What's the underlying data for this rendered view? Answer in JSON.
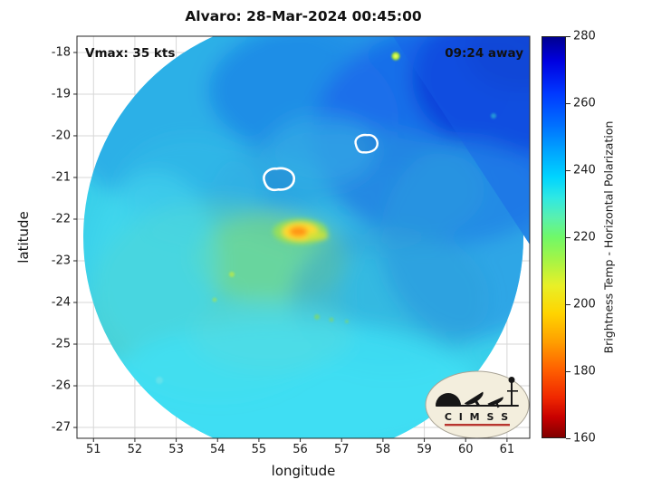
{
  "chart_data": {
    "type": "heatmap",
    "title": "Alvaro: 28-Mar-2024 00:45:00",
    "annotations": {
      "vmax": "Vmax: 35 kts",
      "countdown": "09:24 away"
    },
    "xlabel": "longitude",
    "ylabel": "latitude",
    "xlim": [
      50.6,
      61.55
    ],
    "ylim": [
      -27.26,
      -17.61
    ],
    "xticks": [
      51,
      52,
      53,
      54,
      55,
      56,
      57,
      58,
      59,
      60,
      61
    ],
    "yticks": [
      -18,
      -19,
      -20,
      -21,
      -22,
      -23,
      -24,
      -25,
      -26,
      -27
    ],
    "grid": true,
    "colorbar": {
      "label": "Brightness Temp - Horizontal Polarization",
      "min": 160,
      "max": 280,
      "ticks": [
        280,
        260,
        240,
        220,
        200,
        180,
        160
      ],
      "colormap": "jet"
    },
    "swath": {
      "shape": "circular",
      "center_lon": 56.08,
      "center_lat": -22.44,
      "radius_deg": 4.95,
      "dominant_temp_range_K": [
        235,
        260
      ]
    },
    "features": [
      {
        "id": "warm-core",
        "lon": 56.0,
        "lat": -22.3,
        "desc": "yellow-orange convective burst ~195-210 K"
      },
      {
        "id": "contour-1",
        "lon": 55.5,
        "lat": -21.05,
        "desc": "white analysis contour"
      },
      {
        "id": "contour-2",
        "lon": 57.6,
        "lat": -20.2,
        "desc": "white analysis contour"
      }
    ],
    "logo_text": "C I M S S"
  }
}
